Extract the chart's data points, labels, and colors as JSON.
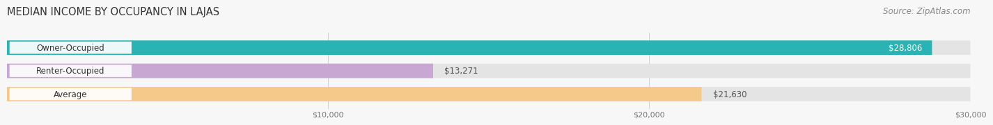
{
  "title": "MEDIAN INCOME BY OCCUPANCY IN LAJAS",
  "source": "Source: ZipAtlas.com",
  "categories": [
    "Owner-Occupied",
    "Renter-Occupied",
    "Average"
  ],
  "values": [
    28806,
    13271,
    21630
  ],
  "labels": [
    "$28,806",
    "$13,271",
    "$21,630"
  ],
  "bar_colors": [
    "#28b4b4",
    "#c8a8d2",
    "#f5c98a"
  ],
  "xmax": 30000,
  "xticks": [
    10000,
    20000,
    30000
  ],
  "xtick_labels": [
    "$10,000",
    "$20,000",
    "$30,000"
  ],
  "background_color": "#f7f7f7",
  "bar_bg_color": "#e4e4e4",
  "title_fontsize": 10.5,
  "label_fontsize": 8.5,
  "source_fontsize": 8.5,
  "bar_height": 0.62,
  "value_inside": [
    true,
    false,
    false
  ],
  "value_colors": [
    "#ffffff",
    "#555555",
    "#555555"
  ],
  "cat_label_color": "#333333"
}
